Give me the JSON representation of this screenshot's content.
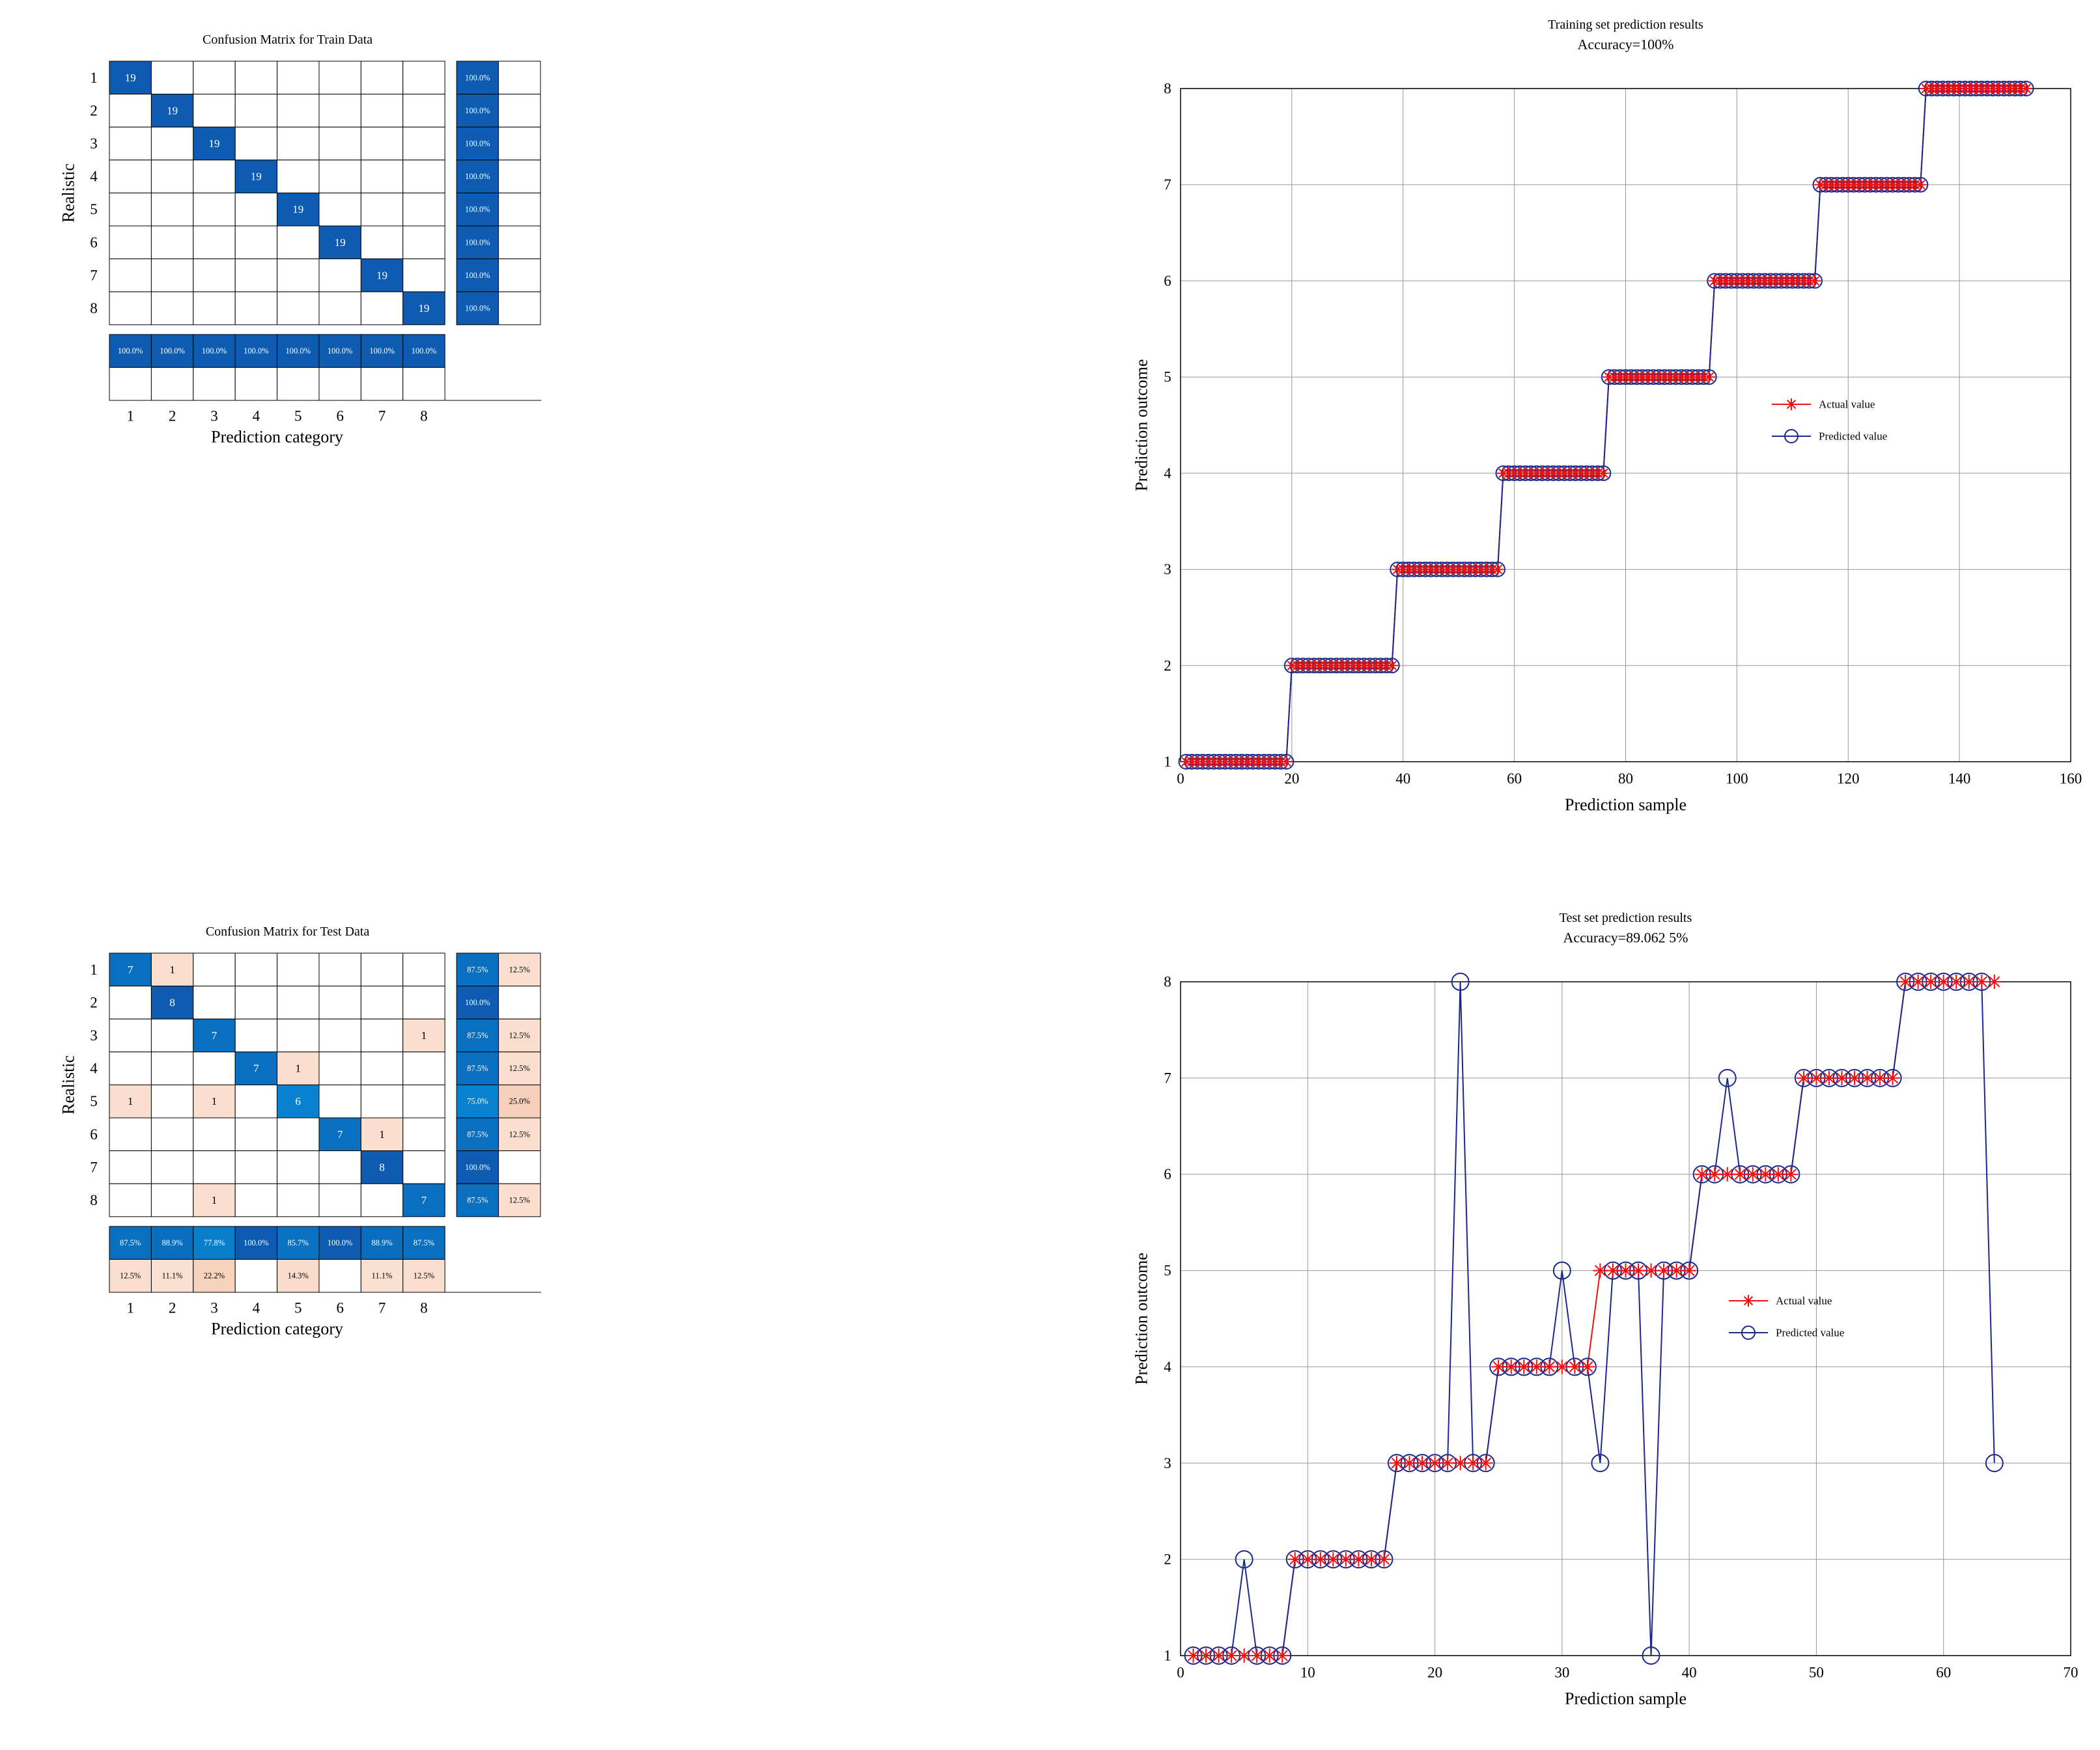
{
  "chart_data": [
    {
      "type": "heatmap",
      "title": "Confusion Matrix for Train Data",
      "xlabel": "Prediction category",
      "ylabel": "Realistic",
      "categories": [
        "1",
        "2",
        "3",
        "4",
        "5",
        "6",
        "7",
        "8"
      ],
      "matrix": [
        [
          19,
          0,
          0,
          0,
          0,
          0,
          0,
          0
        ],
        [
          0,
          19,
          0,
          0,
          0,
          0,
          0,
          0
        ],
        [
          0,
          0,
          19,
          0,
          0,
          0,
          0,
          0
        ],
        [
          0,
          0,
          0,
          19,
          0,
          0,
          0,
          0
        ],
        [
          0,
          0,
          0,
          0,
          19,
          0,
          0,
          0
        ],
        [
          0,
          0,
          0,
          0,
          0,
          19,
          0,
          0
        ],
        [
          0,
          0,
          0,
          0,
          0,
          0,
          19,
          0
        ],
        [
          0,
          0,
          0,
          0,
          0,
          0,
          0,
          19
        ]
      ],
      "row_summary": [
        [
          "100.0%",
          ""
        ],
        [
          "100.0%",
          ""
        ],
        [
          "100.0%",
          ""
        ],
        [
          "100.0%",
          ""
        ],
        [
          "100.0%",
          ""
        ],
        [
          "100.0%",
          ""
        ],
        [
          "100.0%",
          ""
        ],
        [
          "100.0%",
          ""
        ]
      ],
      "col_summary": [
        [
          "100.0%",
          ""
        ],
        [
          "100.0%",
          ""
        ],
        [
          "100.0%",
          ""
        ],
        [
          "100.0%",
          ""
        ],
        [
          "100.0%",
          ""
        ],
        [
          "100.0%",
          ""
        ],
        [
          "100.0%",
          ""
        ],
        [
          "100.0%",
          ""
        ]
      ]
    },
    {
      "type": "line",
      "title": "Training set prediction results",
      "subtitle": "Accuracy=100%",
      "xlabel": "Prediction sample",
      "ylabel": "Prediction outcome",
      "xlim": [
        0,
        160
      ],
      "ylim": [
        1,
        8
      ],
      "xticks": [
        "0",
        "20",
        "40",
        "60",
        "80",
        "100",
        "120",
        "140",
        "160"
      ],
      "yticks": [
        "1",
        "2",
        "3",
        "4",
        "5",
        "6",
        "7",
        "8"
      ],
      "grid": true,
      "legend_position": "center-right",
      "x": "1..152",
      "series": [
        {
          "name": "Actual value",
          "color": "#ee1111",
          "marker": "star",
          "runs": [
            [
              1,
              19
            ],
            [
              2,
              19
            ],
            [
              3,
              19
            ],
            [
              4,
              19
            ],
            [
              5,
              19
            ],
            [
              6,
              19
            ],
            [
              7,
              19
            ],
            [
              8,
              19
            ]
          ]
        },
        {
          "name": "Predicted value",
          "color": "#1a2a8a",
          "marker": "circle",
          "runs": [
            [
              1,
              19
            ],
            [
              2,
              19
            ],
            [
              3,
              19
            ],
            [
              4,
              19
            ],
            [
              5,
              19
            ],
            [
              6,
              19
            ],
            [
              7,
              19
            ],
            [
              8,
              19
            ]
          ]
        }
      ]
    },
    {
      "type": "heatmap",
      "title": "Confusion Matrix for Test Data",
      "xlabel": "Prediction category",
      "ylabel": "Realistic",
      "categories": [
        "1",
        "2",
        "3",
        "4",
        "5",
        "6",
        "7",
        "8"
      ],
      "matrix": [
        [
          7,
          1,
          0,
          0,
          0,
          0,
          0,
          0
        ],
        [
          0,
          8,
          0,
          0,
          0,
          0,
          0,
          0
        ],
        [
          0,
          0,
          7,
          0,
          0,
          0,
          0,
          1
        ],
        [
          0,
          0,
          0,
          7,
          1,
          0,
          0,
          0
        ],
        [
          1,
          0,
          1,
          0,
          6,
          0,
          0,
          0
        ],
        [
          0,
          0,
          0,
          0,
          0,
          7,
          1,
          0
        ],
        [
          0,
          0,
          0,
          0,
          0,
          0,
          8,
          0
        ],
        [
          0,
          0,
          1,
          0,
          0,
          0,
          0,
          7
        ]
      ],
      "row_summary": [
        [
          "87.5%",
          "12.5%"
        ],
        [
          "100.0%",
          ""
        ],
        [
          "87.5%",
          "12.5%"
        ],
        [
          "87.5%",
          "12.5%"
        ],
        [
          "75.0%",
          "25.0%"
        ],
        [
          "87.5%",
          "12.5%"
        ],
        [
          "100.0%",
          ""
        ],
        [
          "87.5%",
          "12.5%"
        ]
      ],
      "col_summary": [
        [
          "87.5%",
          "12.5%"
        ],
        [
          "88.9%",
          "11.1%"
        ],
        [
          "77.8%",
          "22.2%"
        ],
        [
          "100.0%",
          ""
        ],
        [
          "85.7%",
          "14.3%"
        ],
        [
          "100.0%",
          ""
        ],
        [
          "88.9%",
          "11.1%"
        ],
        [
          "87.5%",
          "12.5%"
        ]
      ]
    },
    {
      "type": "line",
      "title": "Test set prediction results",
      "subtitle": "Accuracy=89.062 5%",
      "xlabel": "Prediction sample",
      "ylabel": "Prediction outcome",
      "xlim": [
        0,
        70
      ],
      "ylim": [
        1,
        8
      ],
      "xticks": [
        "0",
        "10",
        "20",
        "30",
        "40",
        "50",
        "60",
        "70"
      ],
      "yticks": [
        "1",
        "2",
        "3",
        "4",
        "5",
        "6",
        "7",
        "8"
      ],
      "grid": true,
      "legend_position": "center-right",
      "x": "1..64",
      "series": [
        {
          "name": "Actual value",
          "color": "#ee1111",
          "marker": "star",
          "values": [
            1,
            1,
            1,
            1,
            1,
            1,
            1,
            1,
            2,
            2,
            2,
            2,
            2,
            2,
            2,
            2,
            3,
            3,
            3,
            3,
            3,
            3,
            3,
            3,
            4,
            4,
            4,
            4,
            4,
            4,
            4,
            4,
            5,
            5,
            5,
            5,
            5,
            5,
            5,
            5,
            6,
            6,
            6,
            6,
            6,
            6,
            6,
            6,
            7,
            7,
            7,
            7,
            7,
            7,
            7,
            7,
            8,
            8,
            8,
            8,
            8,
            8,
            8,
            8
          ]
        },
        {
          "name": "Predicted value",
          "color": "#1a2a8a",
          "marker": "circle",
          "values": [
            1,
            1,
            1,
            1,
            2,
            1,
            1,
            1,
            2,
            2,
            2,
            2,
            2,
            2,
            2,
            2,
            3,
            3,
            3,
            3,
            3,
            8,
            3,
            3,
            4,
            4,
            4,
            4,
            4,
            5,
            4,
            4,
            3,
            5,
            5,
            5,
            1,
            5,
            5,
            5,
            6,
            6,
            7,
            6,
            6,
            6,
            6,
            6,
            7,
            7,
            7,
            7,
            7,
            7,
            7,
            7,
            8,
            8,
            8,
            8,
            8,
            8,
            8,
            3
          ]
        }
      ]
    }
  ]
}
